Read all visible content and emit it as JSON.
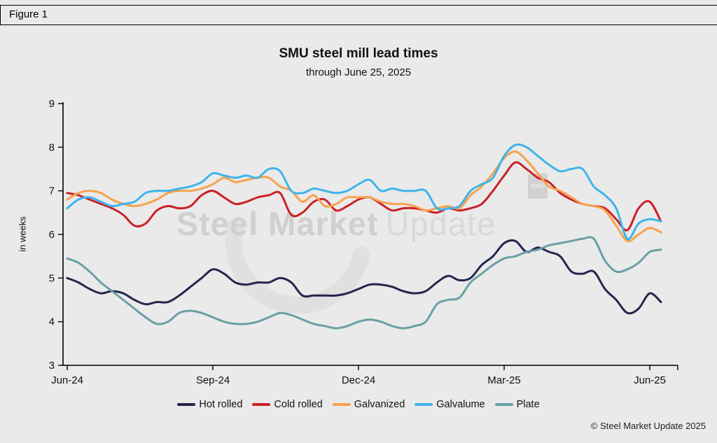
{
  "figure_label": "Figure 1",
  "title": "SMU steel mill lead times",
  "subtitle": "through June 25, 2025",
  "y_axis_label": "in weeks",
  "copyright": "© Steel Market Update 2025",
  "watermark": {
    "text_bold": "Steel Market",
    "text_light": "Update",
    "logo_text": "SMU"
  },
  "chart_data": {
    "type": "line",
    "title": "SMU steel mill lead times",
    "subtitle": "through June 25, 2025",
    "xlabel": "",
    "ylabel": "in weeks",
    "ylim": [
      3,
      9
    ],
    "y_ticks": [
      3,
      4,
      5,
      6,
      7,
      8,
      9
    ],
    "x_unit": "weekly observations, Jun 2024 through June 25, 2025",
    "x_tick_labels": [
      "Jun-24",
      "Sep-24",
      "Dec-24",
      "Mar-25",
      "Jun-25"
    ],
    "x_tick_positions": [
      0,
      13,
      26,
      39,
      52
    ],
    "x_max": 53,
    "grid": false,
    "legend_position": "bottom",
    "series": [
      {
        "name": "Hot rolled",
        "color": "#25254d",
        "values": [
          5.0,
          4.9,
          4.75,
          4.65,
          4.7,
          4.65,
          4.5,
          4.4,
          4.45,
          4.45,
          4.6,
          4.8,
          5.0,
          5.2,
          5.1,
          4.9,
          4.85,
          4.9,
          4.9,
          5.0,
          4.9,
          4.6,
          4.6,
          4.6,
          4.6,
          4.65,
          4.75,
          4.85,
          4.85,
          4.8,
          4.7,
          4.65,
          4.7,
          4.9,
          5.05,
          4.95,
          5.0,
          5.3,
          5.5,
          5.8,
          5.85,
          5.6,
          5.7,
          5.6,
          5.5,
          5.15,
          5.1,
          5.15,
          4.75,
          4.5,
          4.2,
          4.3,
          4.65,
          4.45
        ]
      },
      {
        "name": "Cold rolled",
        "color": "#cb2026",
        "values": [
          6.95,
          6.9,
          6.8,
          6.7,
          6.6,
          6.45,
          6.2,
          6.25,
          6.55,
          6.65,
          6.6,
          6.65,
          6.9,
          7.0,
          6.85,
          6.7,
          6.75,
          6.85,
          6.9,
          6.95,
          6.45,
          6.5,
          6.75,
          6.8,
          6.55,
          6.65,
          6.8,
          6.85,
          6.7,
          6.55,
          6.6,
          6.6,
          6.55,
          6.5,
          6.6,
          6.55,
          6.6,
          6.7,
          7.0,
          7.35,
          7.65,
          7.5,
          7.3,
          7.2,
          6.95,
          6.8,
          6.7,
          6.65,
          6.6,
          6.35,
          6.1,
          6.6,
          6.75,
          6.3
        ]
      },
      {
        "name": "Galvanized",
        "color": "#f7a24e",
        "values": [
          6.8,
          6.95,
          7.0,
          6.95,
          6.8,
          6.7,
          6.65,
          6.7,
          6.8,
          6.95,
          7.0,
          7.0,
          7.05,
          7.15,
          7.3,
          7.2,
          7.25,
          7.3,
          7.3,
          7.1,
          7.0,
          6.75,
          6.9,
          6.65,
          6.7,
          6.85,
          6.85,
          6.85,
          6.75,
          6.7,
          6.7,
          6.65,
          6.55,
          6.6,
          6.65,
          6.6,
          6.9,
          7.1,
          7.4,
          7.75,
          7.9,
          7.7,
          7.4,
          7.1,
          7.0,
          6.85,
          6.7,
          6.65,
          6.55,
          6.2,
          5.85,
          6.0,
          6.15,
          6.05
        ]
      },
      {
        "name": "Galvalume",
        "color": "#3eb4ea",
        "values": [
          6.6,
          6.8,
          6.85,
          6.75,
          6.65,
          6.7,
          6.75,
          6.95,
          7.0,
          7.0,
          7.05,
          7.1,
          7.2,
          7.4,
          7.35,
          7.3,
          7.35,
          7.3,
          7.5,
          7.45,
          7.0,
          6.95,
          7.05,
          7.0,
          6.95,
          7.0,
          7.15,
          7.25,
          7.0,
          7.05,
          7.0,
          7.0,
          7.0,
          6.6,
          6.6,
          6.65,
          7.0,
          7.15,
          7.3,
          7.8,
          8.05,
          8.0,
          7.8,
          7.6,
          7.45,
          7.5,
          7.5,
          7.1,
          6.9,
          6.6,
          5.9,
          6.25,
          6.35,
          6.3
        ]
      },
      {
        "name": "Plate",
        "color": "#68a0a6",
        "values": [
          5.45,
          5.35,
          5.15,
          4.9,
          4.7,
          4.5,
          4.3,
          4.1,
          3.95,
          4.0,
          4.2,
          4.25,
          4.2,
          4.1,
          4.0,
          3.95,
          3.95,
          4.0,
          4.1,
          4.2,
          4.15,
          4.05,
          3.95,
          3.9,
          3.85,
          3.9,
          4.0,
          4.05,
          4.0,
          3.9,
          3.85,
          3.9,
          4.0,
          4.4,
          4.5,
          4.55,
          4.9,
          5.1,
          5.3,
          5.45,
          5.5,
          5.6,
          5.65,
          5.75,
          5.8,
          5.85,
          5.9,
          5.9,
          5.4,
          5.15,
          5.2,
          5.35,
          5.6,
          5.65
        ]
      }
    ]
  }
}
